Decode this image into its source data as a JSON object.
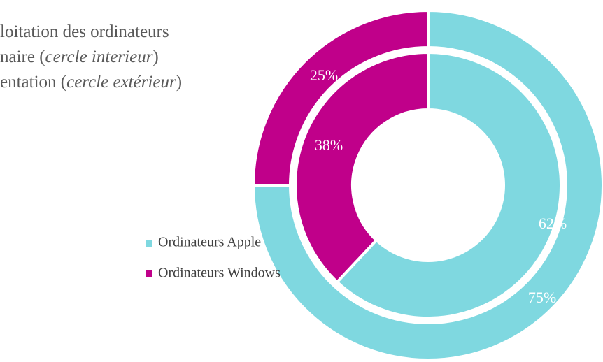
{
  "chart_data": {
    "type": "pie",
    "title_lines": [
      [
        "loitation des ordinateurs"
      ],
      [
        "naire (",
        "cercle interieur",
        ")"
      ],
      [
        "entation (",
        "cercle extérieur",
        ")"
      ]
    ],
    "categories": [
      "Ordinateurs Apple",
      "Ordinateurs Windows"
    ],
    "colors": [
      "#7fd8e0",
      "#c0008a"
    ],
    "series": [
      {
        "values": [
          62,
          38
        ],
        "value_labels": [
          "62%",
          "38%"
        ]
      },
      {
        "values": [
          75,
          25
        ],
        "value_labels": [
          "75%",
          "25%"
        ]
      }
    ],
    "legend": "left"
  }
}
